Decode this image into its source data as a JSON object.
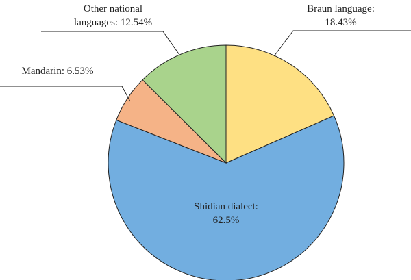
{
  "chart_data": {
    "type": "pie",
    "categories": [
      "Braun language:",
      "Shidian dialect:",
      "Mandarin:",
      "Other national languages:"
    ],
    "values": [
      18.43,
      62.5,
      6.53,
      12.54
    ],
    "value_labels": [
      "18.43%",
      "62.5%",
      "6.53%",
      "12.54%"
    ],
    "colors": [
      "#FEE083",
      "#72AEE0",
      "#F5B387",
      "#A9D38C"
    ]
  }
}
